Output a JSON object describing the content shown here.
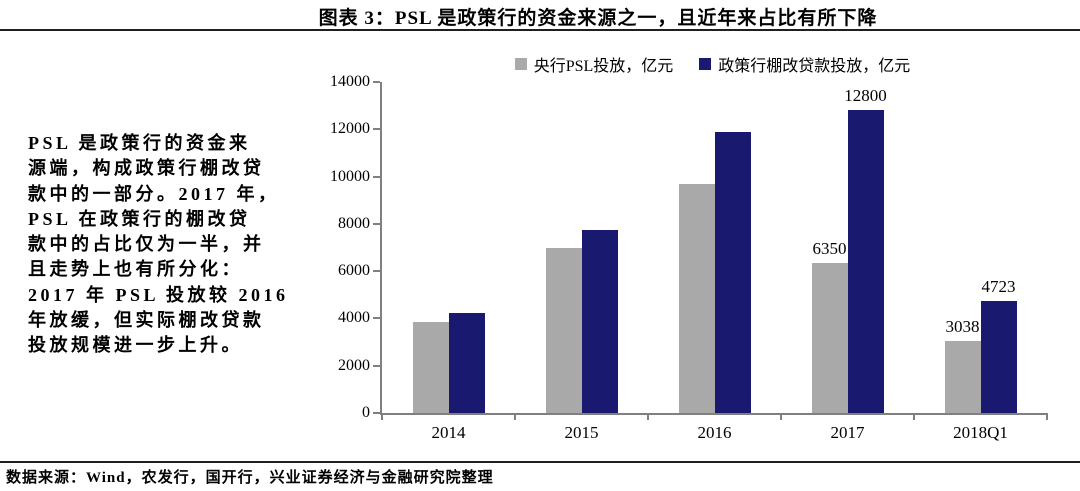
{
  "header": {
    "title": "图表 3：PSL 是政策行的资金来源之一，且近年来占比有所下降"
  },
  "note": {
    "text": "PSL 是政策行的资金来\n源端，构成政策行棚改贷\n款中的一部分。2017 年，\nPSL 在政策行的棚改贷\n款中的占比仅为一半，并\n且走势上也有所分化：\n2017 年 PSL 投放较 2016\n年放缓，但实际棚改贷款\n投放规模进一步上升。"
  },
  "footer": {
    "source": "数据来源：Wind，农发行，国开行，兴业证券经济与金融研究院整理"
  },
  "colors": {
    "psl_gray": "#a9a9a9",
    "loan_navy": "#191970",
    "axis_gray": "#808080"
  },
  "chart_data": {
    "type": "bar",
    "title": "",
    "categories": [
      "2014",
      "2015",
      "2016",
      "2017",
      "2018Q1"
    ],
    "series": [
      {
        "name": "央行PSL投放，亿元",
        "color": "#a9a9a9",
        "values": [
          3830,
          6980,
          9700,
          6350,
          3038
        ],
        "data_labels": [
          "",
          "",
          "",
          "6350",
          "3038"
        ]
      },
      {
        "name": "政策行棚改贷款投放，亿元",
        "color": "#191970",
        "values": [
          4250,
          7750,
          11900,
          12800,
          4723
        ],
        "data_labels": [
          "",
          "",
          "",
          "12800",
          "4723"
        ]
      }
    ],
    "xlabel": "",
    "ylabel": "",
    "ylim": [
      0,
      14000
    ],
    "ytick_step": 2000,
    "grid": false,
    "legend_position": "top"
  }
}
